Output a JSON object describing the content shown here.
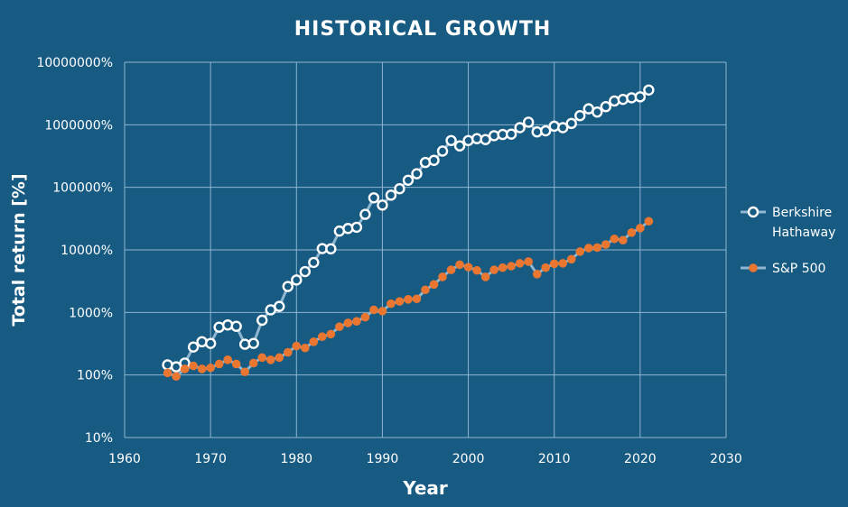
{
  "chart_data": {
    "type": "scatter",
    "title": "HISTORICAL GROWTH",
    "xlabel": "Year",
    "ylabel": "Total return [%]",
    "x_scale": "linear",
    "y_scale": "log",
    "xlim": [
      1960,
      2030
    ],
    "ylim": [
      10,
      10000000
    ],
    "x_ticks": [
      "1960",
      "1970",
      "1980",
      "1990",
      "2000",
      "2010",
      "2020",
      "2030"
    ],
    "y_ticks": [
      "10%",
      "100%",
      "1000%",
      "10000%",
      "100000%",
      "1000000%",
      "10000000%"
    ],
    "grid": true,
    "legend_position": "right",
    "x": [
      1965,
      1966,
      1967,
      1968,
      1969,
      1970,
      1971,
      1972,
      1973,
      1974,
      1975,
      1976,
      1977,
      1978,
      1979,
      1980,
      1981,
      1982,
      1983,
      1984,
      1985,
      1986,
      1987,
      1988,
      1989,
      1990,
      1991,
      1992,
      1993,
      1994,
      1995,
      1996,
      1997,
      1998,
      1999,
      2000,
      2001,
      2002,
      2003,
      2004,
      2005,
      2006,
      2007,
      2008,
      2009,
      2010,
      2011,
      2012,
      2013,
      2014,
      2015,
      2016,
      2017,
      2018,
      2019,
      2020,
      2021
    ],
    "series": [
      {
        "name": "Berkshire Hathaway",
        "color": "#ffffff",
        "marker": "hollow-circle",
        "line_color": "#8fb7d1",
        "values": [
          145,
          135,
          155,
          280,
          340,
          320,
          580,
          630,
          600,
          310,
          320,
          750,
          1100,
          1250,
          2600,
          3300,
          4500,
          6300,
          10500,
          10400,
          20000,
          22000,
          23000,
          37000,
          68000,
          52000,
          75000,
          95000,
          130000,
          165000,
          250000,
          270000,
          380000,
          560000,
          460000,
          560000,
          600000,
          580000,
          670000,
          700000,
          710000,
          900000,
          1100000,
          770000,
          800000,
          950000,
          900000,
          1050000,
          1400000,
          1800000,
          1600000,
          1950000,
          2400000,
          2550000,
          2700000,
          2800000,
          3600000
        ]
      },
      {
        "name": "S&P 500",
        "color": "#e97631",
        "marker": "filled-circle",
        "line_color": "#8fb7d1",
        "values": [
          108,
          95,
          125,
          140,
          125,
          130,
          150,
          175,
          150,
          112,
          155,
          190,
          175,
          190,
          230,
          290,
          270,
          340,
          410,
          450,
          590,
          680,
          720,
          840,
          1100,
          1050,
          1380,
          1500,
          1620,
          1650,
          2300,
          2800,
          3700,
          4800,
          5800,
          5300,
          4700,
          3700,
          4800,
          5200,
          5500,
          6100,
          6500,
          4100,
          5200,
          6000,
          6100,
          7100,
          9400,
          10700,
          10900,
          12200,
          15000,
          14300,
          18900,
          22300,
          28700
        ]
      }
    ]
  }
}
